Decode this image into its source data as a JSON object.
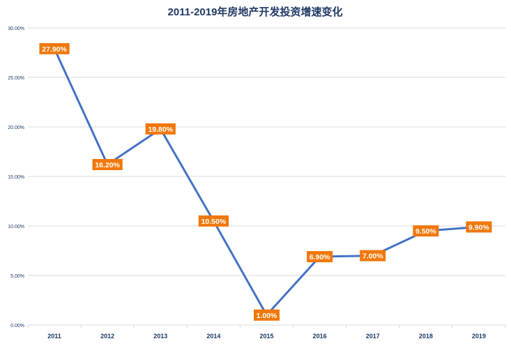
{
  "chart_data": {
    "type": "line",
    "title": "2011-2019年房地产开发投资增速变化",
    "xlabel": "",
    "ylabel": "",
    "categories": [
      "2011",
      "2012",
      "2013",
      "2014",
      "2015",
      "2016",
      "2017",
      "2018",
      "2019"
    ],
    "series": [
      {
        "values": [
          27.9,
          16.2,
          19.8,
          10.5,
          1.0,
          6.9,
          7.0,
          9.5,
          9.9
        ],
        "data_labels": [
          "27.90%",
          "16.20%",
          "19.80%",
          "10.50%",
          "1.00%",
          "6.90%",
          "7.00%",
          "9.50%",
          "9.90%"
        ]
      }
    ],
    "y_ticks": [
      0,
      5,
      10,
      15,
      20,
      25,
      30
    ],
    "y_tick_labels": [
      "0.00%",
      "5.00%",
      "10.00%",
      "15.00%",
      "20.00%",
      "25.00%",
      "30.00%"
    ],
    "ylim": [
      0,
      30
    ],
    "grid": true,
    "legend": "none",
    "colors": {
      "line": "#4472C4",
      "label_bg": "#F0780A",
      "label_text": "#ffffff",
      "grid": "#d9d9d9",
      "axis_text": "#1f3864",
      "title_text": "#1f3864"
    }
  }
}
